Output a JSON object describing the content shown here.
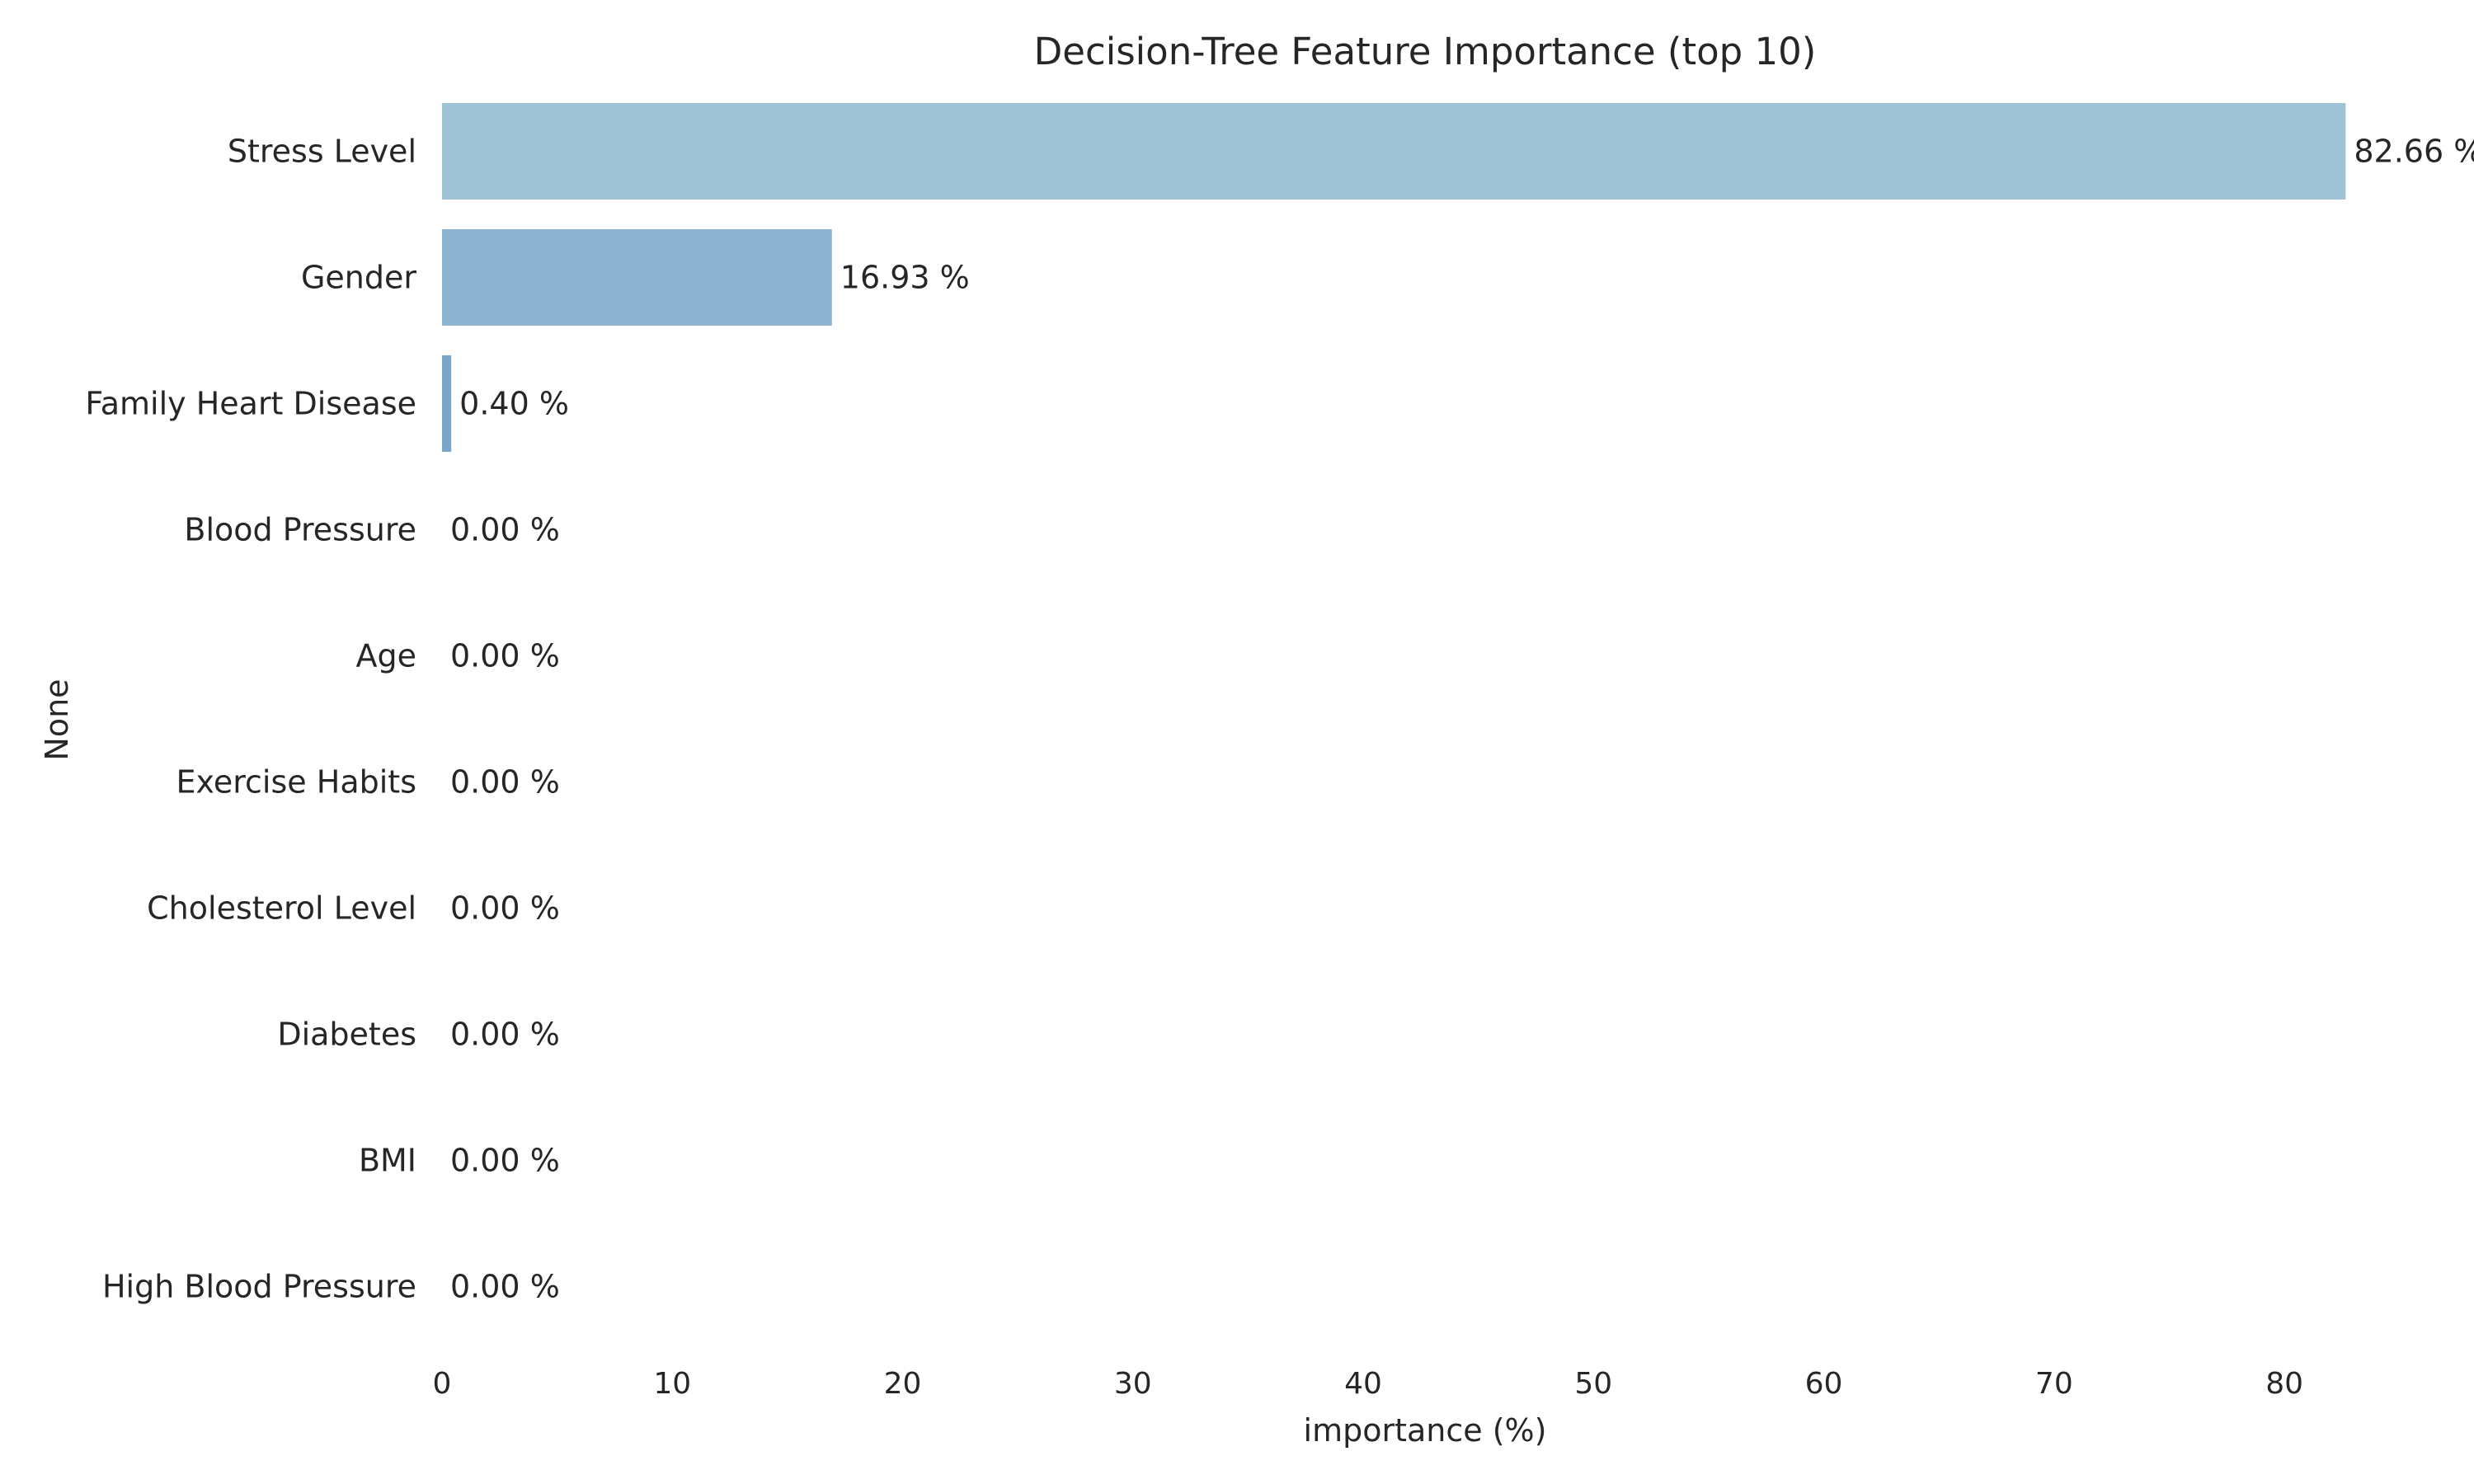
{
  "chart_data": {
    "type": "bar",
    "orientation": "horizontal",
    "title": "Decision-Tree Feature Importance (top 10)",
    "xlabel": "importance (%)",
    "ylabel": "None",
    "categories": [
      "Stress Level",
      "Gender",
      "Family Heart Disease",
      "Blood Pressure",
      "Age",
      "Exercise Habits",
      "Cholesterol Level",
      "Diabetes",
      "BMI",
      "High Blood Pressure"
    ],
    "values": [
      82.66,
      16.93,
      0.4,
      0.0,
      0.0,
      0.0,
      0.0,
      0.0,
      0.0,
      0.0
    ],
    "data_labels": [
      "82.66 %",
      "16.93 %",
      "0.40 %",
      "0.00 %",
      "0.00 %",
      "0.00 %",
      "0.00 %",
      "0.00 %",
      "0.00 %",
      "0.00 %"
    ],
    "xticks": [
      0,
      10,
      20,
      30,
      40,
      50,
      60,
      70,
      80
    ],
    "xtick_labels": [
      "0",
      "10",
      "20",
      "30",
      "40",
      "50",
      "60",
      "70",
      "80"
    ],
    "xlim": [
      0,
      86.8
    ],
    "grid": false,
    "legend": "none",
    "colors": [
      "#a0c2d7",
      "#8cb3cf",
      "#7aa7c9",
      "#a0c2d7",
      "#a0c2d7",
      "#a0c2d7",
      "#a0c2d7",
      "#a0c2d7",
      "#a0c2d7",
      "#a0c2d7"
    ]
  }
}
